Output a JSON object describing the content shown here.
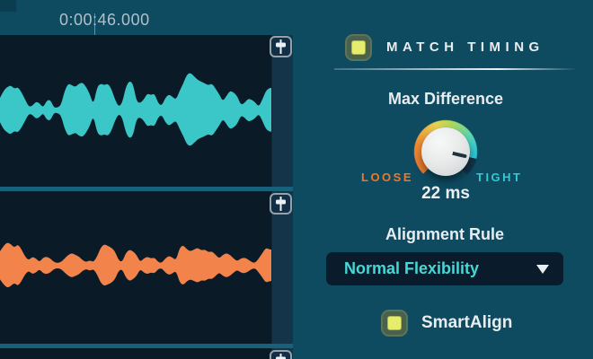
{
  "timeline": {
    "current_time": "0:00:46.000"
  },
  "tracks": [
    {
      "id": "track-1",
      "wave_color": "#3BC6C8",
      "waveform": [
        14,
        22,
        26,
        28,
        24,
        26,
        20,
        12,
        4,
        5,
        10,
        8,
        3,
        11,
        12,
        3,
        3,
        6,
        22,
        30,
        28,
        26,
        30,
        31,
        26,
        18,
        6,
        26,
        30,
        28,
        30,
        24,
        12,
        4,
        8,
        26,
        33,
        30,
        10,
        8,
        12,
        19,
        17,
        19,
        8,
        5,
        14,
        18,
        15,
        12,
        22,
        30,
        40,
        42,
        38,
        34,
        32,
        30,
        28,
        30,
        24,
        18,
        10,
        16,
        22,
        20,
        16,
        6,
        8,
        13,
        12,
        9,
        4,
        12,
        22,
        25
      ]
    },
    {
      "id": "track-2",
      "wave_color": "#F2834B",
      "waveform": [
        16,
        22,
        26,
        24,
        20,
        24,
        18,
        10,
        6,
        10,
        8,
        4,
        9,
        10,
        8,
        4,
        3,
        4,
        8,
        12,
        14,
        12,
        10,
        6,
        4,
        6,
        4,
        10,
        20,
        24,
        22,
        20,
        16,
        6,
        4,
        14,
        18,
        16,
        12,
        4,
        8,
        10,
        8,
        9,
        4,
        3,
        8,
        11,
        9,
        6,
        20,
        23,
        18,
        16,
        18,
        20,
        17,
        18,
        15,
        16,
        12,
        8,
        12,
        14,
        12,
        8,
        5,
        8,
        9,
        7,
        4,
        3,
        8,
        14,
        20,
        18
      ]
    },
    {
      "id": "track-3",
      "wave_color": "",
      "waveform": []
    }
  ],
  "panel": {
    "match_timing": {
      "label": "MATCH TIMING",
      "checked": true
    },
    "max_difference": {
      "label": "Max Difference",
      "value": "22 ms",
      "min_label": "LOOSE",
      "max_label": "TIGHT"
    },
    "alignment_rule": {
      "label": "Alignment Rule",
      "selected_option": "Normal Flexibility"
    },
    "smart_align": {
      "label": "SmartAlign",
      "checked": true
    }
  },
  "colors": {
    "background": "#0E4A60",
    "track_background": "#0A1B27",
    "track_divider": "#17617B",
    "wave_teal": "#3BC6C8",
    "wave_orange": "#F2834B",
    "loose_orange": "#E87A2E",
    "tight_teal": "#33C9D1",
    "checkbox_fill": "#E6EC6B",
    "dropdown_background": "#0A1C2B",
    "dropdown_text": "#45D8D6",
    "text_light": "#E8EDF0"
  }
}
